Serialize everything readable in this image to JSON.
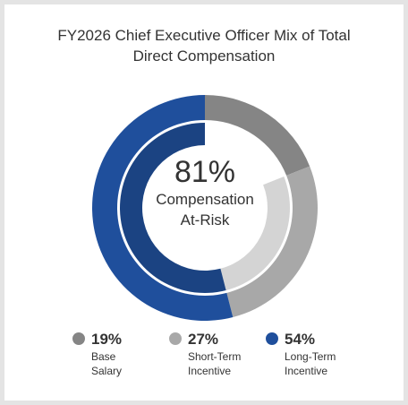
{
  "chart_data": {
    "type": "donut",
    "title": "FY2026 Chief Executive Officer Mix of Total Direct Compensation",
    "center_value": "81%",
    "center_text": "Compensation At-Risk",
    "series": [
      {
        "name": "Base Salary",
        "values": [
          19
        ],
        "value_labels": [
          "19%"
        ],
        "color": "#858585",
        "inner_color": null
      },
      {
        "name": "Short-Term Incentive",
        "values": [
          27
        ],
        "value_labels": [
          "27%"
        ],
        "color": "#a8a8a8",
        "inner_color": "#d4d4d4"
      },
      {
        "name": "Long-Term Incentive",
        "values": [
          54
        ],
        "value_labels": [
          "54%"
        ],
        "color": "#1f4f9c",
        "inner_color": "#1b4382"
      }
    ]
  }
}
